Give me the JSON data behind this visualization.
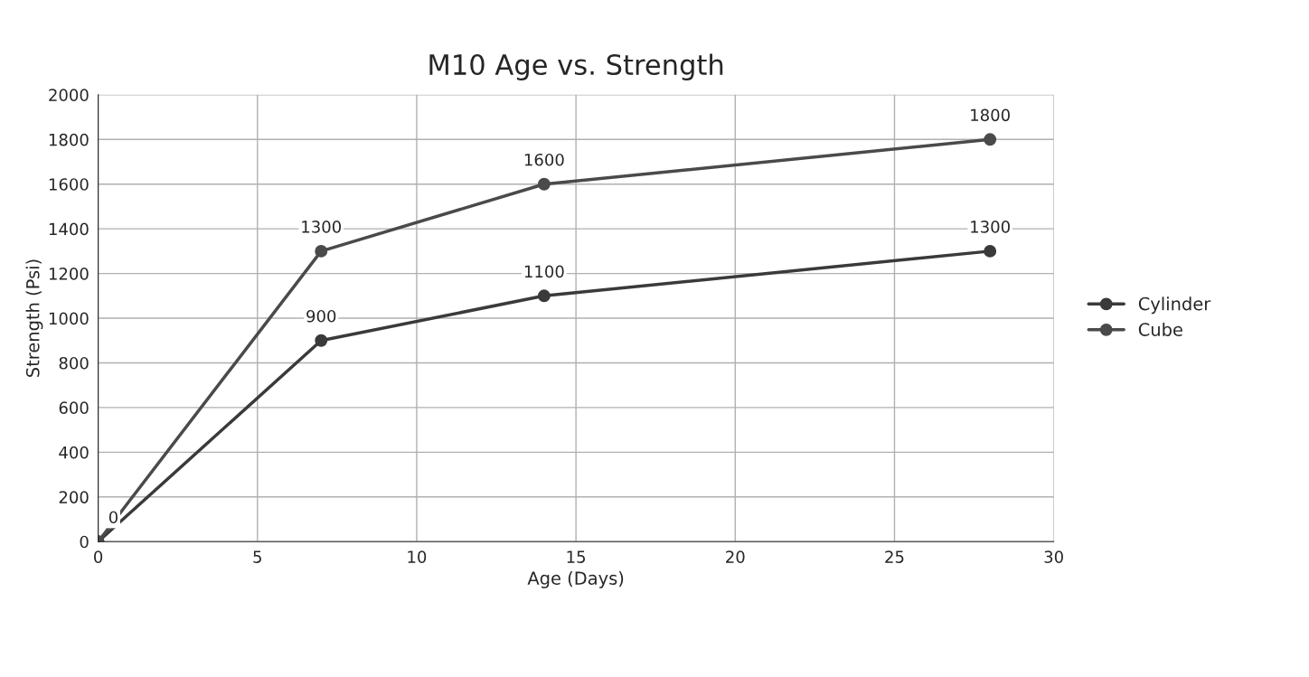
{
  "chart_data": {
    "type": "line",
    "title": "M10 Age vs. Strength",
    "xlabel": "Age (Days)",
    "ylabel": "Strength (Psi)",
    "x": [
      0,
      7,
      14,
      28
    ],
    "series": [
      {
        "name": "Cylinder",
        "color": "#3a3a3a",
        "values": [
          0,
          900,
          1100,
          1300
        ],
        "value_labels": [
          null,
          "900",
          "1100",
          "1300"
        ]
      },
      {
        "name": "Cube",
        "color": "#4a4a4a",
        "values": [
          0,
          1300,
          1600,
          1800
        ],
        "value_labels": [
          "0",
          "1300",
          "1600",
          "1800"
        ]
      }
    ],
    "xlim": [
      0,
      30
    ],
    "xticks": [
      0,
      5,
      10,
      15,
      20,
      25,
      30
    ],
    "ylim": [
      0,
      2000
    ],
    "yticks": [
      0,
      200,
      400,
      600,
      800,
      1000,
      1200,
      1400,
      1600,
      1800,
      2000
    ],
    "grid": true,
    "legend": "right",
    "marker": "circle",
    "line_style": "solid"
  }
}
